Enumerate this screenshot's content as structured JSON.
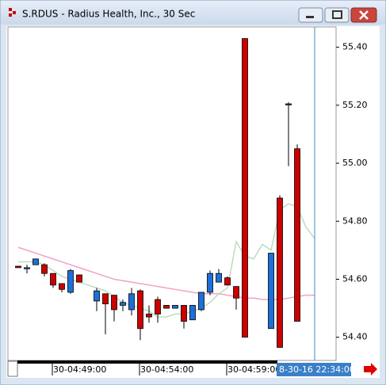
{
  "window": {
    "title": "S.RDUS - Radius Health, Inc., 30 Sec"
  },
  "chart_data": {
    "type": "candlestick",
    "categories": [
      null,
      null,
      null,
      null,
      "30-04:49:00",
      null,
      null,
      null,
      null,
      null,
      null,
      null,
      null,
      null,
      "30-04:54:00",
      null,
      null,
      null,
      null,
      null,
      null,
      null,
      null,
      null,
      "30-04:59:00",
      null,
      null,
      null,
      null,
      null,
      null,
      null,
      null,
      null,
      null
    ],
    "open": [
      54.645,
      54.64,
      54.65,
      54.65,
      54.62,
      54.585,
      54.555,
      54.615,
      null,
      54.525,
      54.55,
      54.545,
      54.51,
      54.495,
      54.56,
      54.48,
      54.53,
      54.51,
      54.5,
      54.51,
      54.46,
      54.495,
      54.555,
      54.59,
      54.605,
      54.575,
      55.43,
      null,
      null,
      54.43,
      54.88,
      55.205,
      55.05,
      null,
      null
    ],
    "high": [
      54.645,
      54.65,
      54.67,
      54.655,
      54.62,
      54.585,
      54.635,
      54.615,
      null,
      54.57,
      54.55,
      54.545,
      54.53,
      54.57,
      54.565,
      54.51,
      54.54,
      54.51,
      54.51,
      54.51,
      54.51,
      54.555,
      54.63,
      54.635,
      54.61,
      54.575,
      55.43,
      null,
      null,
      54.69,
      54.89,
      55.21,
      55.065,
      null,
      null
    ],
    "low": [
      54.64,
      54.62,
      54.65,
      54.61,
      54.57,
      54.555,
      54.55,
      54.59,
      null,
      54.49,
      54.41,
      54.455,
      54.49,
      54.475,
      54.39,
      54.45,
      54.45,
      54.5,
      54.5,
      54.43,
      54.46,
      54.49,
      54.545,
      54.59,
      54.58,
      54.495,
      54.4,
      null,
      null,
      54.43,
      54.365,
      54.99,
      54.455,
      null,
      null
    ],
    "close": [
      54.64,
      54.64,
      54.67,
      54.62,
      54.58,
      54.565,
      54.63,
      54.59,
      null,
      54.56,
      54.515,
      54.495,
      54.52,
      54.55,
      54.43,
      54.47,
      54.48,
      54.5,
      54.51,
      54.455,
      54.51,
      54.555,
      54.62,
      54.62,
      54.58,
      54.535,
      54.4,
      null,
      null,
      54.69,
      54.365,
      55.205,
      54.455,
      null,
      null
    ],
    "up_color": "#1f6fd8",
    "down_color": "#cc0000",
    "lines": [
      {
        "color": "#f4a0c8",
        "values": [
          54.71,
          54.7,
          54.69,
          54.68,
          54.67,
          54.66,
          54.65,
          54.64,
          54.63,
          54.62,
          54.61,
          54.6,
          54.595,
          54.59,
          54.585,
          54.58,
          54.575,
          54.57,
          54.565,
          54.56,
          54.555,
          54.55,
          54.55,
          54.55,
          54.545,
          54.54,
          54.535,
          54.535,
          54.53,
          54.53,
          54.53,
          54.535,
          54.54,
          54.545,
          54.545
        ]
      },
      {
        "color": "#bcdcbc",
        "values": [
          54.66,
          54.66,
          54.66,
          54.65,
          54.63,
          54.61,
          54.6,
          54.59,
          54.58,
          54.57,
          54.56,
          54.54,
          54.52,
          54.51,
          54.5,
          54.49,
          54.47,
          54.47,
          54.48,
          54.48,
          54.49,
          54.5,
          54.52,
          54.55,
          54.57,
          54.73,
          54.68,
          54.67,
          54.72,
          54.7,
          54.84,
          54.86,
          54.85,
          54.78,
          54.74
        ]
      }
    ],
    "ylim": [
      54.32,
      55.47
    ],
    "yticks": [
      {
        "value": 54.4,
        "label": "54.40"
      },
      {
        "value": 54.6,
        "label": "54.60"
      },
      {
        "value": 54.8,
        "label": "54.80"
      },
      {
        "value": 55.0,
        "label": "55.00"
      },
      {
        "value": 55.2,
        "label": "55.20"
      },
      {
        "value": 55.4,
        "label": "55.40"
      }
    ],
    "cursor_label": "8-30-16 22:34:00"
  }
}
